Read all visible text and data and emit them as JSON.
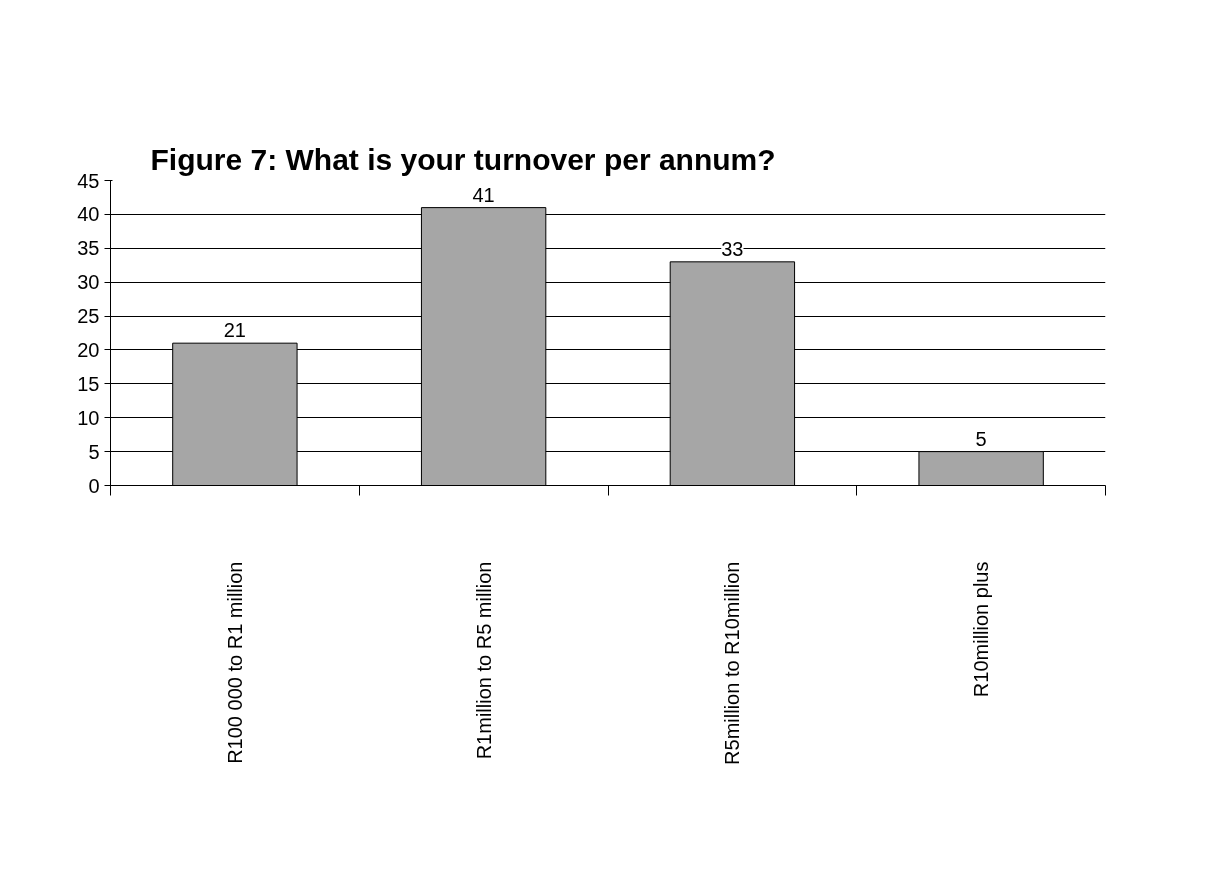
{
  "chart_data": {
    "type": "bar",
    "title": "Figure 7: What is your turnover per annum?",
    "categories": [
      "R100 000 to R1 million",
      "R1million to R5 million",
      "R5million to R10million",
      "R10million plus"
    ],
    "values": [
      21,
      41,
      33,
      5
    ],
    "color": "#a6a6a6",
    "ylim": [
      0,
      45
    ],
    "yticks": [
      0,
      5,
      10,
      15,
      20,
      25,
      30,
      35,
      40,
      45
    ],
    "grid": "y",
    "data_labels": true
  }
}
